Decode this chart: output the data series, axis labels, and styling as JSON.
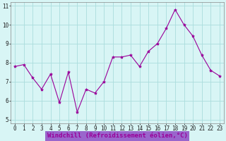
{
  "x": [
    0,
    1,
    2,
    3,
    4,
    5,
    6,
    7,
    8,
    9,
    10,
    11,
    12,
    13,
    14,
    15,
    16,
    17,
    18,
    19,
    20,
    21,
    22,
    23
  ],
  "y": [
    7.8,
    7.9,
    7.2,
    6.6,
    7.4,
    5.9,
    7.5,
    5.4,
    6.6,
    6.4,
    7.0,
    8.3,
    8.3,
    8.4,
    7.8,
    8.6,
    9.0,
    9.8,
    10.8,
    10.0,
    9.4,
    8.4,
    7.6,
    7.3
  ],
  "line_color": "#990099",
  "marker": "*",
  "marker_size": 3,
  "bg_color": "#d8f5f5",
  "grid_color": "#aadddd",
  "xlabel": "Windchill (Refroidissement éolien,°C)",
  "xlabel_color": "#990099",
  "xlabel_bg": "#9966cc",
  "yticks": [
    5,
    6,
    7,
    8,
    9,
    10,
    11
  ],
  "xlim": [
    -0.5,
    23.5
  ],
  "ylim": [
    4.8,
    11.2
  ],
  "tick_fontsize": 5.5,
  "xlabel_fontsize": 6.5
}
